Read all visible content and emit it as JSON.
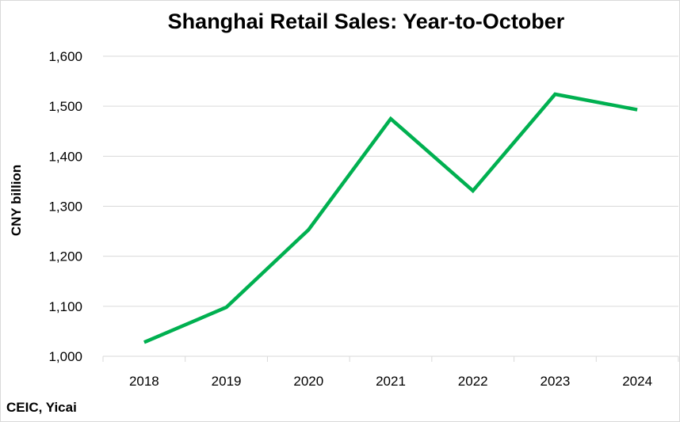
{
  "chart_data": {
    "type": "line",
    "title": "Shanghai Retail Sales: Year-to-October",
    "xlabel": "",
    "ylabel": "CNY billion",
    "source": "CEIC, Yicai",
    "categories": [
      "2018",
      "2019",
      "2020",
      "2021",
      "2022",
      "2023",
      "2024"
    ],
    "series": [
      {
        "values": [
          1028,
          1098,
          1253,
          1475,
          1331,
          1524,
          1493
        ]
      }
    ],
    "ylim": [
      1000,
      1600
    ],
    "yticks": [
      1000,
      1100,
      1200,
      1300,
      1400,
      1500,
      1600
    ],
    "ytick_labels": [
      "1,000",
      "1,100",
      "1,200",
      "1,300",
      "1,400",
      "1,500",
      "1,600"
    ],
    "grid": true,
    "legend": "none",
    "line_color": "#00b050",
    "grid_color": "#d9d9d9"
  }
}
